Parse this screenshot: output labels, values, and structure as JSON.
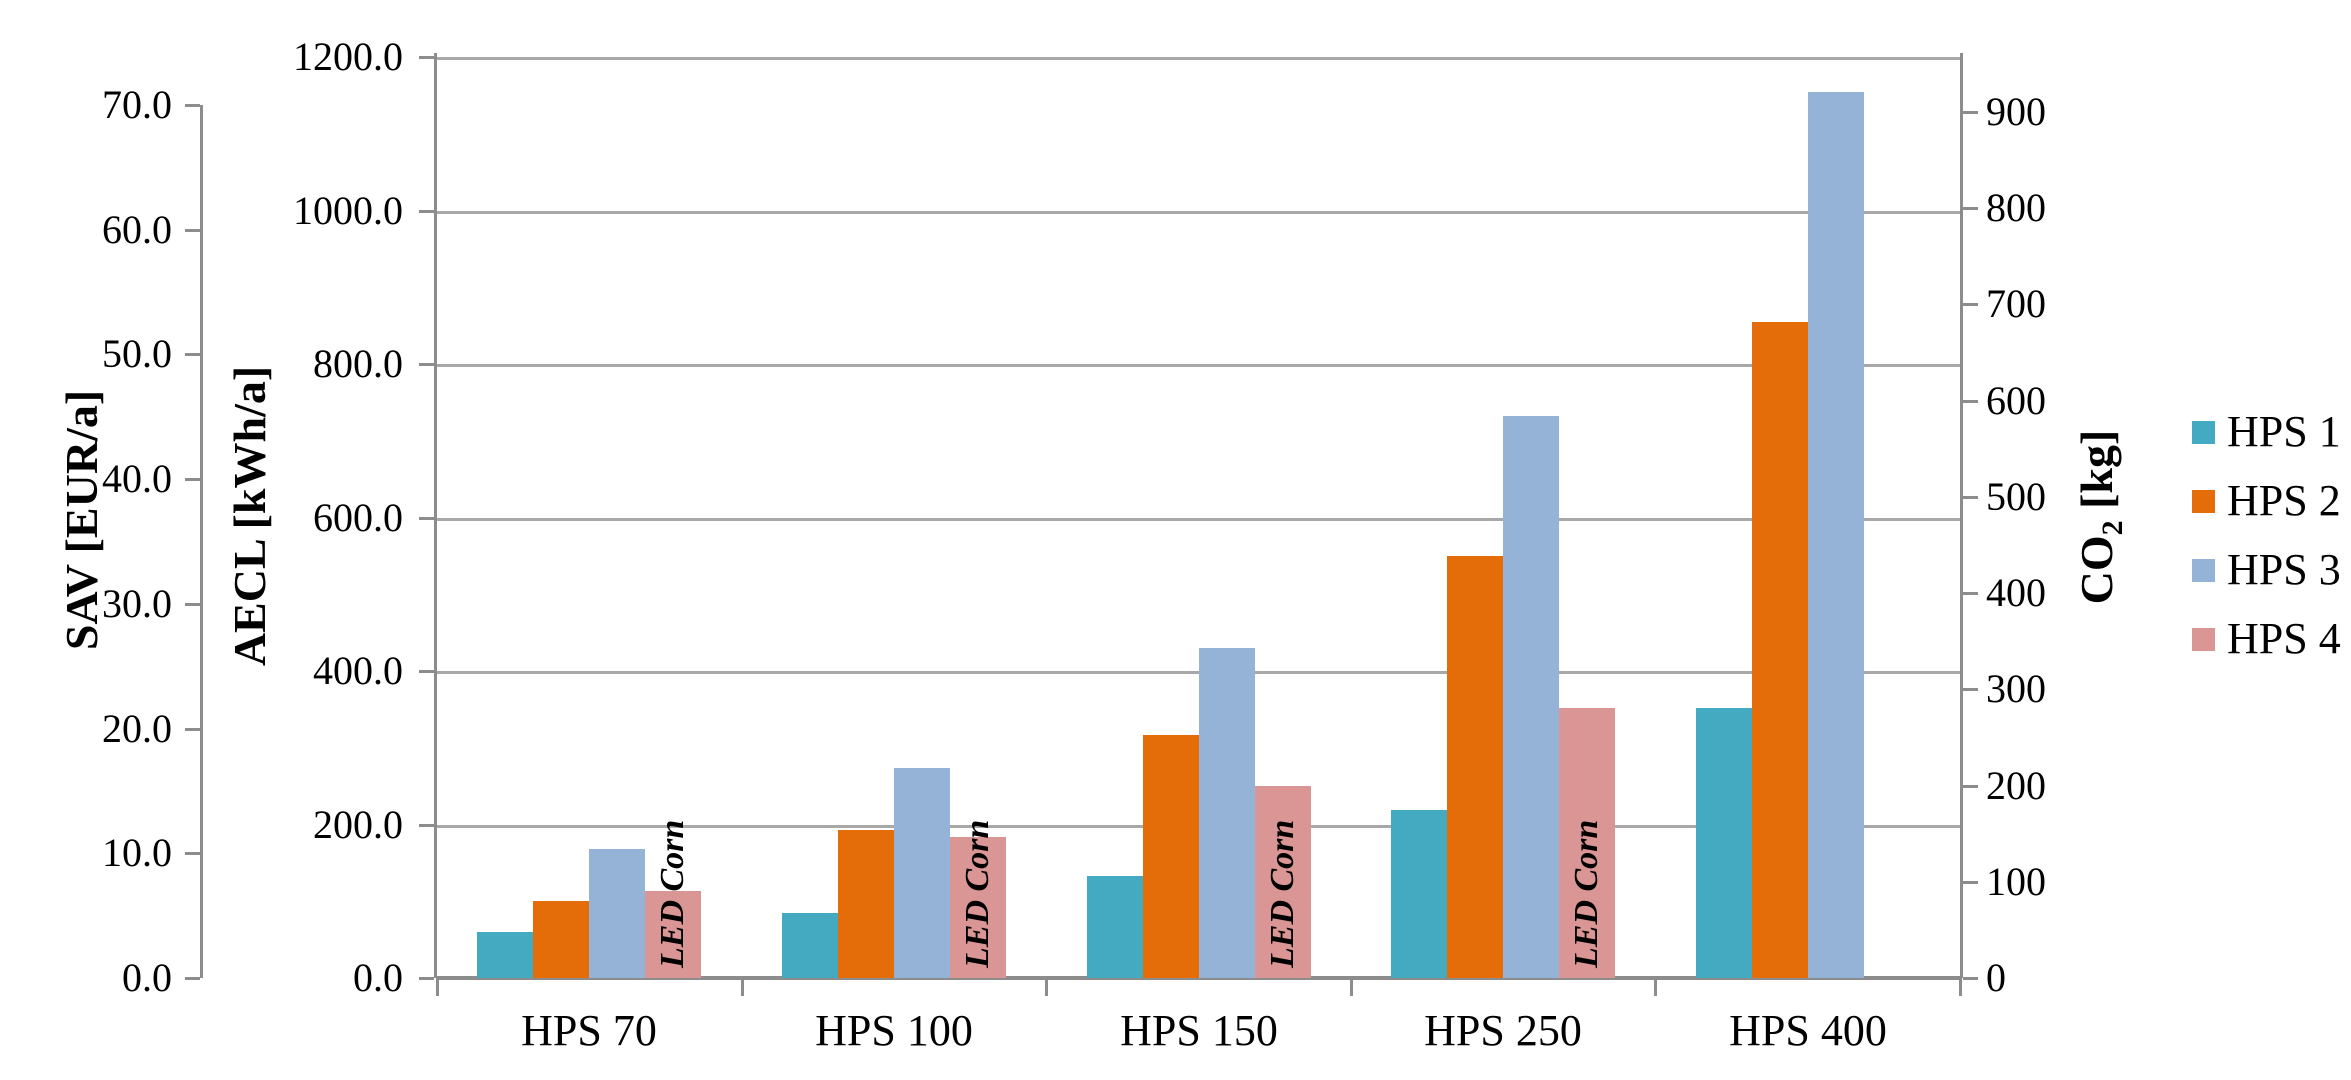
{
  "chart_data": {
    "type": "bar",
    "title": "",
    "categories": [
      "HPS 70",
      "HPS 100",
      "HPS 150",
      "HPS 250",
      "HPS 400"
    ],
    "series": [
      {
        "name": "HPS 1",
        "color": "#44AAC2",
        "values_on_aecl_axis": [
          60,
          85,
          133,
          219,
          352
        ]
      },
      {
        "name": "HPS 2",
        "color": "#E46C09",
        "values_on_aecl_axis": [
          100,
          193,
          316,
          550,
          855
        ]
      },
      {
        "name": "HPS 3",
        "color": "#95B3D7",
        "values_on_aecl_axis": [
          168,
          274,
          430,
          732,
          1154
        ]
      },
      {
        "name": "HPS 4",
        "color": "#D99694",
        "values_on_aecl_axis": [
          114,
          184,
          250,
          352,
          null
        ]
      }
    ],
    "bar_label": {
      "text": "LED Corn",
      "series": "HPS 4",
      "categories": [
        "HPS 70",
        "HPS 100",
        "HPS 150",
        "HPS 250"
      ]
    },
    "axes": {
      "left_outer": {
        "title": "SAV [EUR/a]",
        "min": 0,
        "max": 70,
        "step": 10,
        "decimals": 1
      },
      "left_inner": {
        "title": "AECL [kWh/a]",
        "min": 0,
        "max": 1200,
        "step": 200,
        "decimals": 1
      },
      "right": {
        "title_pre": "CO",
        "title_sub": "2",
        "title_post": " [kg]",
        "min": 0,
        "max": 900,
        "step": 100,
        "decimals": 0
      }
    },
    "legend": {
      "position": "right",
      "entries": [
        "HPS 1",
        "HPS 2",
        "HPS 3",
        "HPS 4"
      ]
    },
    "grid": "horizontal gridlines at left_inner axis steps",
    "background": "#FFFFFF",
    "gridline_color": "#A8A8A8",
    "axis_color": "#8C8C8C",
    "text_color": "#000000"
  }
}
